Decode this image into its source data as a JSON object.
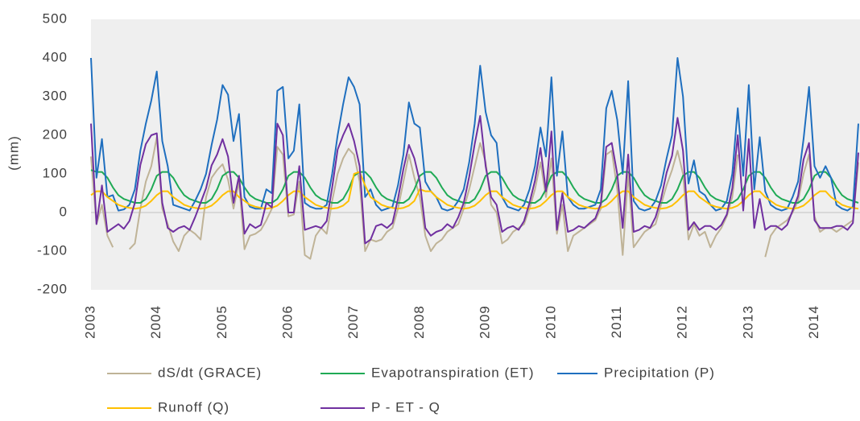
{
  "chart_data": {
    "type": "line",
    "y_label": "(mm)",
    "categories": [
      "2003",
      null,
      null,
      null,
      null,
      null,
      null,
      null,
      null,
      null,
      null,
      null,
      "2004",
      null,
      null,
      null,
      null,
      null,
      null,
      null,
      null,
      null,
      null,
      null,
      "2005",
      null,
      null,
      null,
      null,
      null,
      null,
      null,
      null,
      null,
      null,
      null,
      "2006",
      null,
      null,
      null,
      null,
      null,
      null,
      null,
      null,
      null,
      null,
      null,
      "2007",
      null,
      null,
      null,
      null,
      null,
      null,
      null,
      null,
      null,
      null,
      null,
      "2008",
      null,
      null,
      null,
      null,
      null,
      null,
      null,
      null,
      null,
      null,
      null,
      "2009",
      null,
      null,
      null,
      null,
      null,
      null,
      null,
      null,
      null,
      null,
      null,
      "2010",
      null,
      null,
      null,
      null,
      null,
      null,
      null,
      null,
      null,
      null,
      null,
      "2011",
      null,
      null,
      null,
      null,
      null,
      null,
      null,
      null,
      null,
      null,
      null,
      "2012",
      null,
      null,
      null,
      null,
      null,
      null,
      null,
      null,
      null,
      null,
      null,
      "2013",
      null,
      null,
      null,
      null,
      null,
      null,
      null,
      null,
      null,
      null,
      null,
      "2014",
      null,
      null,
      null,
      null,
      null,
      null,
      null,
      null
    ],
    "ylim": [
      -200,
      500
    ],
    "yticks": [
      -200,
      -100,
      0,
      100,
      200,
      300,
      400,
      500
    ],
    "series": [
      {
        "name": "dS/dt (GRACE)",
        "color": "#bfb397",
        "values": [
          145,
          -30,
          20,
          -60,
          -90,
          null,
          null,
          -95,
          -80,
          10,
          80,
          120,
          195,
          10,
          -30,
          -75,
          -100,
          -60,
          -45,
          -55,
          -70,
          40,
          90,
          110,
          125,
          85,
          10,
          80,
          -95,
          -60,
          -55,
          -45,
          -20,
          10,
          170,
          150,
          -10,
          -5,
          80,
          -110,
          -120,
          -60,
          -40,
          -55,
          30,
          100,
          140,
          165,
          150,
          80,
          -100,
          -70,
          -75,
          -70,
          -50,
          -40,
          10,
          80,
          150,
          90,
          40,
          -60,
          -100,
          -80,
          -70,
          -50,
          -40,
          -30,
          10,
          60,
          120,
          180,
          130,
          20,
          0,
          -80,
          -70,
          -50,
          -40,
          -30,
          10,
          60,
          130,
          40,
          140,
          -55,
          20,
          -100,
          -60,
          -50,
          -40,
          -30,
          -20,
          10,
          150,
          160,
          60,
          -110,
          100,
          -90,
          -70,
          -50,
          -40,
          -30,
          20,
          70,
          110,
          160,
          100,
          -70,
          -30,
          -60,
          -50,
          -90,
          -60,
          -40,
          -10,
          40,
          150,
          null,
          null,
          null,
          null,
          -115,
          -60,
          -40,
          -30,
          -20,
          0,
          30,
          100,
          150,
          -10,
          -50,
          -40,
          -40,
          -50,
          -40,
          -30,
          -20,
          130
        ]
      },
      {
        "name": "Evapotranspiration (ET)",
        "color": "#1faa55",
        "values": [
          110,
          105,
          105,
          90,
          65,
          45,
          35,
          30,
          25,
          25,
          35,
          60,
          95,
          105,
          105,
          90,
          65,
          45,
          35,
          30,
          25,
          25,
          35,
          60,
          95,
          105,
          105,
          90,
          65,
          45,
          35,
          30,
          25,
          25,
          35,
          60,
          95,
          105,
          105,
          90,
          65,
          45,
          35,
          30,
          25,
          25,
          35,
          60,
          95,
          105,
          105,
          90,
          65,
          45,
          35,
          30,
          25,
          25,
          35,
          60,
          95,
          105,
          105,
          90,
          65,
          45,
          35,
          30,
          25,
          25,
          35,
          60,
          95,
          105,
          105,
          90,
          65,
          45,
          35,
          30,
          25,
          25,
          35,
          60,
          95,
          105,
          105,
          90,
          65,
          45,
          35,
          30,
          25,
          25,
          35,
          60,
          95,
          105,
          105,
          90,
          65,
          45,
          35,
          30,
          25,
          25,
          35,
          60,
          95,
          105,
          105,
          90,
          65,
          45,
          35,
          30,
          25,
          25,
          35,
          60,
          95,
          105,
          105,
          90,
          65,
          45,
          35,
          30,
          25,
          25,
          35,
          60,
          95,
          105,
          105,
          90,
          65,
          45,
          35,
          30,
          25
        ]
      },
      {
        "name": "Precipitation (P)",
        "color": "#1f6fbf",
        "values": [
          400,
          90,
          190,
          40,
          45,
          5,
          8,
          20,
          60,
          160,
          230,
          290,
          365,
          185,
          120,
          20,
          15,
          10,
          5,
          30,
          60,
          100,
          175,
          240,
          330,
          305,
          185,
          255,
          40,
          15,
          10,
          10,
          60,
          50,
          315,
          325,
          140,
          160,
          280,
          25,
          15,
          10,
          10,
          20,
          100,
          200,
          280,
          350,
          325,
          280,
          40,
          60,
          20,
          5,
          10,
          15,
          70,
          150,
          285,
          230,
          220,
          80,
          55,
          40,
          10,
          5,
          10,
          30,
          60,
          130,
          230,
          380,
          260,
          200,
          180,
          40,
          15,
          10,
          5,
          20,
          60,
          120,
          220,
          145,
          350,
          95,
          210,
          40,
          20,
          10,
          10,
          15,
          20,
          60,
          270,
          315,
          240,
          100,
          340,
          30,
          10,
          5,
          10,
          30,
          70,
          140,
          200,
          400,
          300,
          75,
          135,
          55,
          45,
          20,
          5,
          10,
          30,
          100,
          270,
          95,
          330,
          60,
          195,
          55,
          20,
          10,
          5,
          10,
          40,
          80,
          190,
          325,
          120,
          90,
          120,
          90,
          20,
          10,
          5,
          15,
          230
        ]
      },
      {
        "name": "Runoff (Q)",
        "color": "#ffc000",
        "values": [
          45,
          55,
          55,
          40,
          30,
          20,
          15,
          12,
          10,
          12,
          18,
          30,
          45,
          55,
          55,
          40,
          30,
          20,
          15,
          12,
          10,
          12,
          18,
          30,
          45,
          55,
          55,
          40,
          30,
          20,
          15,
          12,
          10,
          12,
          18,
          30,
          45,
          55,
          55,
          40,
          30,
          20,
          15,
          12,
          10,
          12,
          18,
          30,
          100,
          105,
          70,
          40,
          30,
          20,
          15,
          12,
          10,
          12,
          18,
          30,
          60,
          55,
          55,
          40,
          30,
          20,
          15,
          12,
          10,
          12,
          18,
          30,
          45,
          55,
          55,
          40,
          30,
          20,
          15,
          12,
          10,
          12,
          18,
          30,
          45,
          55,
          55,
          40,
          30,
          20,
          15,
          12,
          10,
          12,
          18,
          30,
          45,
          55,
          55,
          40,
          30,
          20,
          15,
          12,
          10,
          12,
          18,
          30,
          45,
          55,
          55,
          40,
          30,
          20,
          15,
          12,
          10,
          12,
          18,
          30,
          45,
          55,
          55,
          40,
          30,
          20,
          15,
          12,
          10,
          12,
          18,
          30,
          45,
          55,
          55,
          40,
          30,
          20,
          15,
          12,
          10
        ]
      },
      {
        "name": "P - ET - Q",
        "color": "#7030a0",
        "values": [
          230,
          -30,
          70,
          -50,
          -40,
          -30,
          -42,
          -22,
          25,
          123,
          177,
          200,
          205,
          25,
          -40,
          -50,
          -40,
          -35,
          -45,
          -12,
          25,
          63,
          122,
          150,
          190,
          145,
          25,
          95,
          -55,
          -30,
          -40,
          -32,
          25,
          13,
          230,
          200,
          0,
          0,
          120,
          -45,
          -40,
          -35,
          -40,
          -22,
          65,
          163,
          200,
          230,
          185,
          120,
          -80,
          -70,
          -35,
          -30,
          -40,
          -27,
          35,
          113,
          175,
          140,
          80,
          -40,
          -60,
          -50,
          -45,
          -30,
          -40,
          -12,
          25,
          93,
          177,
          250,
          120,
          40,
          20,
          -50,
          -40,
          -35,
          -45,
          -22,
          25,
          83,
          167,
          55,
          210,
          -45,
          50,
          -50,
          -45,
          -35,
          -40,
          -27,
          -15,
          23,
          170,
          180,
          100,
          -40,
          150,
          -50,
          -45,
          -35,
          -40,
          -12,
          35,
          103,
          147,
          245,
          160,
          -45,
          -25,
          -45,
          -35,
          -35,
          -45,
          -32,
          -5,
          63,
          200,
          5,
          190,
          -40,
          35,
          -45,
          -35,
          -35,
          -45,
          -32,
          5,
          43,
          137,
          180,
          -20,
          -40,
          -40,
          -40,
          -35,
          -35,
          -45,
          -27,
          155
        ]
      }
    ],
    "legend": "bottom"
  }
}
